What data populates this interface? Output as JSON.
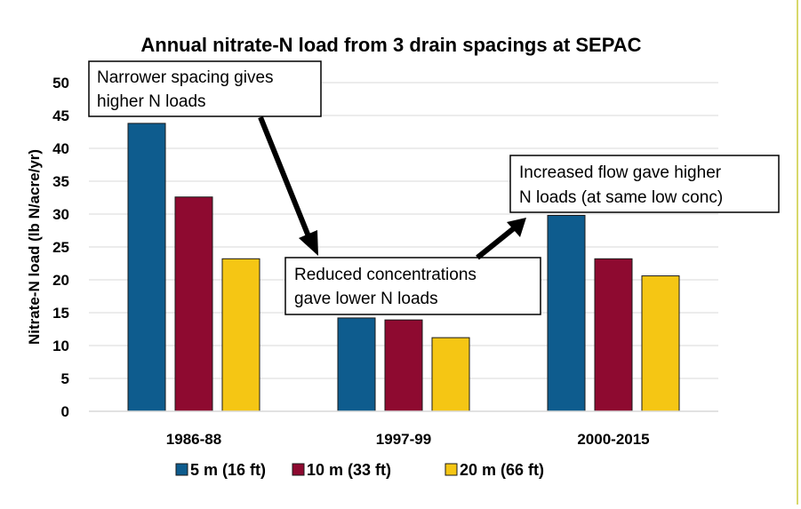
{
  "chart_data": {
    "type": "bar",
    "title": "Annual nitrate-N load from 3 drain spacings at SEPAC",
    "ylabel": "Nitrate-N load (lb N/acre/yr)",
    "xlabel": "",
    "ylim": [
      0,
      50
    ],
    "yticks": [
      "0",
      "5",
      "10",
      "15",
      "20",
      "25",
      "30",
      "35",
      "40",
      "45",
      "50"
    ],
    "categories": [
      "1986-88",
      "1997-99",
      "2000-2015"
    ],
    "series": [
      {
        "name": "5 m (16 ft)",
        "color": "#0E5C8E",
        "values": [
          43.8,
          14.2,
          29.8
        ]
      },
      {
        "name": "10 m (33 ft)",
        "color": "#8E0A30",
        "values": [
          32.6,
          13.9,
          23.2
        ]
      },
      {
        "name": "20 m (66 ft)",
        "color": "#F5C614",
        "values": [
          23.2,
          11.2,
          20.6
        ]
      }
    ],
    "grid": "horizontal",
    "legend_position": "bottom",
    "annotations": [
      {
        "lines": [
          "Narrower spacing gives",
          "higher N loads"
        ]
      },
      {
        "lines": [
          "Reduced concentrations",
          "gave lower N loads"
        ]
      },
      {
        "lines": [
          "Increased flow gave higher",
          "N loads (at same low conc)"
        ]
      }
    ]
  },
  "colors": {
    "border_accent": "#D8D86A",
    "gridline": "#D9D9D9"
  }
}
